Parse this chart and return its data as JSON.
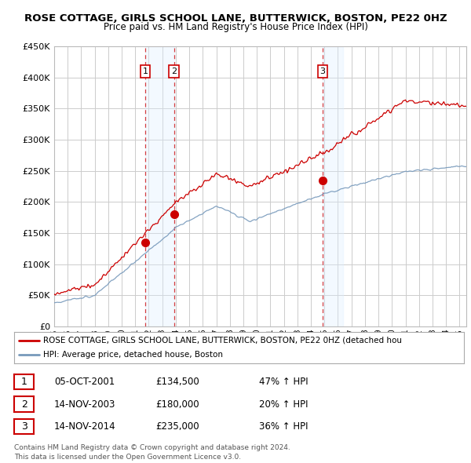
{
  "title": "ROSE COTTAGE, GIRLS SCHOOL LANE, BUTTERWICK, BOSTON, PE22 0HZ",
  "subtitle": "Price paid vs. HM Land Registry's House Price Index (HPI)",
  "background_color": "#ffffff",
  "plot_bg_color": "#ffffff",
  "grid_color": "#cccccc",
  "red_line_color": "#cc0000",
  "blue_line_color": "#7799bb",
  "sale_marker_color": "#cc0000",
  "vline_color": "#cc0000",
  "span_color": "#ddeeff",
  "ylim": [
    0,
    450000
  ],
  "yticks": [
    0,
    50000,
    100000,
    150000,
    200000,
    250000,
    300000,
    350000,
    400000,
    450000
  ],
  "ytick_labels": [
    "£0",
    "£50K",
    "£100K",
    "£150K",
    "£200K",
    "£250K",
    "£300K",
    "£350K",
    "£400K",
    "£450K"
  ],
  "xlim_start": 1995.5,
  "xlim_end": 2025.5,
  "sales": [
    {
      "date_num": 2001.75,
      "price": 134500,
      "label": "1"
    },
    {
      "date_num": 2003.87,
      "price": 180000,
      "label": "2"
    },
    {
      "date_num": 2014.87,
      "price": 235000,
      "label": "3"
    }
  ],
  "legend_entries": [
    "ROSE COTTAGE, GIRLS SCHOOL LANE, BUTTERWICK, BOSTON, PE22 0HZ (detached hou",
    "HPI: Average price, detached house, Boston"
  ],
  "table_rows": [
    {
      "num": "1",
      "date": "05-OCT-2001",
      "price": "£134,500",
      "hpi": "47% ↑ HPI"
    },
    {
      "num": "2",
      "date": "14-NOV-2003",
      "price": "£180,000",
      "hpi": "20% ↑ HPI"
    },
    {
      "num": "3",
      "date": "14-NOV-2014",
      "price": "£235,000",
      "hpi": "36% ↑ HPI"
    }
  ],
  "footer": "Contains HM Land Registry data © Crown copyright and database right 2024.\nThis data is licensed under the Open Government Licence v3.0."
}
